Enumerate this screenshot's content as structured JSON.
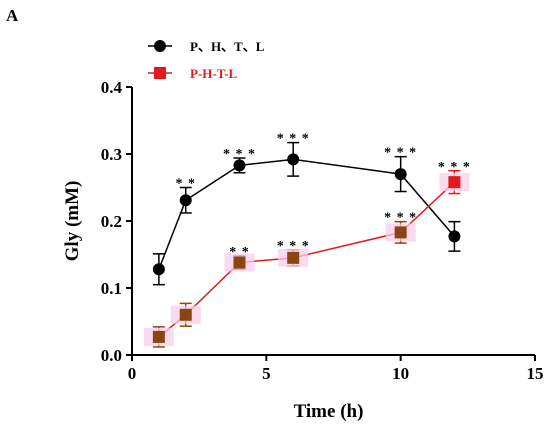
{
  "panel_label": "A",
  "chart_data": {
    "type": "line",
    "xlabel": "Time (h)",
    "ylabel": "Gly (mM)",
    "xlim": [
      0,
      15
    ],
    "ylim": [
      0.0,
      0.4
    ],
    "xticks": [
      0,
      5,
      10,
      15
    ],
    "yticks": [
      0.0,
      0.1,
      0.2,
      0.3,
      0.4
    ],
    "xtick_labels": [
      "0",
      "5",
      "10",
      "15"
    ],
    "ytick_labels": [
      "0.0",
      "0.1",
      "0.2",
      "0.3",
      "0.4"
    ],
    "grid": false,
    "legend_position": "top-left",
    "series": [
      {
        "name": "P、H、T、L",
        "marker": "circle",
        "color": "#000000",
        "x": [
          1,
          2,
          4,
          6,
          10,
          12
        ],
        "y": [
          0.128,
          0.231,
          0.283,
          0.292,
          0.27,
          0.177
        ],
        "err": [
          0.023,
          0.019,
          0.011,
          0.025,
          0.026,
          0.022
        ]
      },
      {
        "name": "P-H-T-L",
        "marker": "square",
        "color": "#e31a1c",
        "fill_colors": [
          "#8b4513",
          "#8b4513",
          "#8b4513",
          "#8b4513",
          "#8b4513",
          "#e31a1c"
        ],
        "x": [
          1,
          2,
          4,
          6,
          10,
          12
        ],
        "y": [
          0.027,
          0.06,
          0.138,
          0.145,
          0.183,
          0.258
        ],
        "err": [
          0.015,
          0.017,
          0.01,
          0.012,
          0.016,
          0.017
        ]
      }
    ],
    "annotations": [
      {
        "x": 2,
        "y": 0.25,
        "text": "* *"
      },
      {
        "x": 4,
        "y": 0.294,
        "text": "* * *"
      },
      {
        "x": 6,
        "y": 0.317,
        "text": "* * *"
      },
      {
        "x": 10,
        "y": 0.296,
        "text": "* * *"
      },
      {
        "x": 4,
        "y": 0.148,
        "text": "* *"
      },
      {
        "x": 6,
        "y": 0.157,
        "text": "* * *"
      },
      {
        "x": 10,
        "y": 0.199,
        "text": "* * *"
      },
      {
        "x": 12,
        "y": 0.275,
        "text": "* * *"
      }
    ]
  }
}
